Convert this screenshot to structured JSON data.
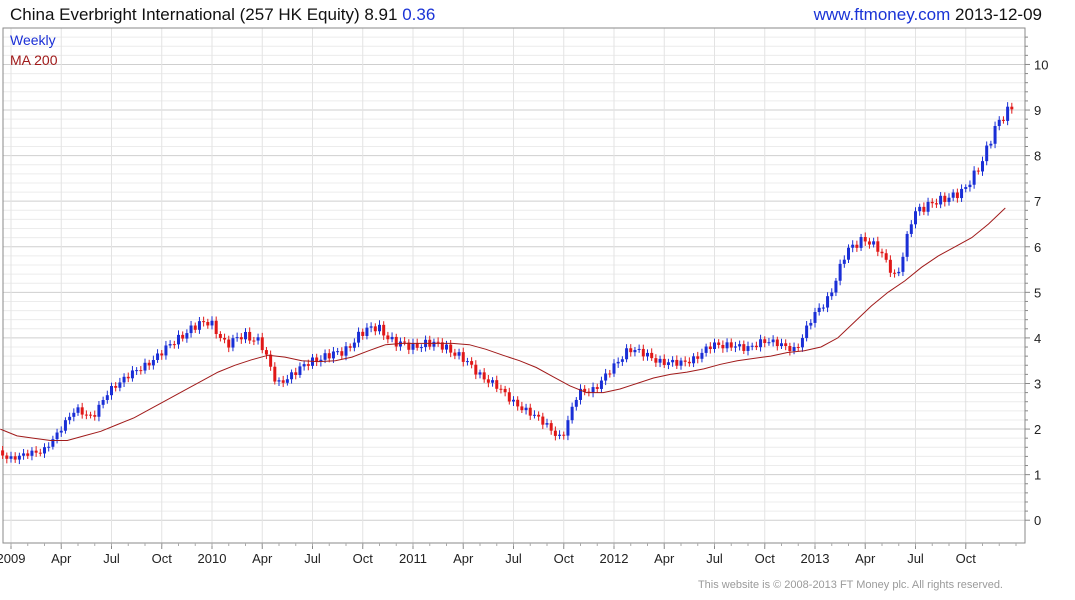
{
  "header": {
    "title": "China Everbright International (257 HK Equity) 8.91",
    "change": "0.36",
    "site": "www.ftmoney.com",
    "date": "2013-12-09"
  },
  "footer": {
    "copyright": "This website is © 2008-2013 FT Money plc. All rights reserved."
  },
  "colors": {
    "up": "#1a2fd6",
    "down": "#e01818",
    "ma": "#a01a1a",
    "legend_weekly": "#1a2fd6",
    "legend_ma": "#a01a1a",
    "grid": "#d8d8d8"
  },
  "chart_data": {
    "type": "line",
    "title": "China Everbright International (257 HK Equity) 8.91",
    "legend": [
      "Weekly",
      "MA 200"
    ],
    "legend_position": "top-left",
    "grid": true,
    "ylim": [
      -0.5,
      10.8
    ],
    "y_ticks": [
      0,
      1,
      2,
      3,
      4,
      5,
      6,
      7,
      8,
      9,
      10
    ],
    "x_tick_labels": [
      {
        "date": "2009-01",
        "label": "2009"
      },
      {
        "date": "2009-04",
        "label": "Apr"
      },
      {
        "date": "2009-07",
        "label": "Jul"
      },
      {
        "date": "2009-10",
        "label": "Oct"
      },
      {
        "date": "2010-01",
        "label": "2010"
      },
      {
        "date": "2010-04",
        "label": "Apr"
      },
      {
        "date": "2010-07",
        "label": "Jul"
      },
      {
        "date": "2010-10",
        "label": "Oct"
      },
      {
        "date": "2011-01",
        "label": "2011"
      },
      {
        "date": "2011-04",
        "label": "Apr"
      },
      {
        "date": "2011-07",
        "label": "Jul"
      },
      {
        "date": "2011-10",
        "label": "Oct"
      },
      {
        "date": "2012-01",
        "label": "2012"
      },
      {
        "date": "2012-04",
        "label": "Apr"
      },
      {
        "date": "2012-07",
        "label": "Jul"
      },
      {
        "date": "2012-10",
        "label": "Oct"
      },
      {
        "date": "2013-01",
        "label": "2013"
      },
      {
        "date": "2013-04",
        "label": "Apr"
      },
      {
        "date": "2013-07",
        "label": "Jul"
      },
      {
        "date": "2013-10",
        "label": "Oct"
      }
    ],
    "series": [
      {
        "name": "Weekly",
        "style": "candlestick",
        "x": [
          "2008-12",
          "2009-01",
          "2009-02",
          "2009-03",
          "2009-04",
          "2009-05",
          "2009-06",
          "2009-07",
          "2009-08",
          "2009-09",
          "2009-10",
          "2009-11",
          "2009-12",
          "2010-01",
          "2010-02",
          "2010-03",
          "2010-04",
          "2010-05",
          "2010-06",
          "2010-07",
          "2010-08",
          "2010-09",
          "2010-10",
          "2010-11",
          "2010-12",
          "2011-01",
          "2011-02",
          "2011-03",
          "2011-04",
          "2011-05",
          "2011-06",
          "2011-07",
          "2011-08",
          "2011-09",
          "2011-10",
          "2011-11",
          "2011-12",
          "2012-01",
          "2012-02",
          "2012-03",
          "2012-04",
          "2012-05",
          "2012-06",
          "2012-07",
          "2012-08",
          "2012-09",
          "2012-10",
          "2012-11",
          "2012-12",
          "2013-01",
          "2013-02",
          "2013-03",
          "2013-04",
          "2013-05",
          "2013-06",
          "2013-07",
          "2013-08",
          "2013-09",
          "2013-10",
          "2013-11",
          "2013-12"
        ],
        "values": [
          1.5,
          1.4,
          1.4,
          1.55,
          1.9,
          2.5,
          2.2,
          2.9,
          3.1,
          3.4,
          3.6,
          4.0,
          4.2,
          4.4,
          3.8,
          4.1,
          3.9,
          3.0,
          3.2,
          3.5,
          3.6,
          3.7,
          4.1,
          4.25,
          3.9,
          3.8,
          3.9,
          3.8,
          3.6,
          3.2,
          3.0,
          2.6,
          2.4,
          2.1,
          1.8,
          2.8,
          2.9,
          3.3,
          3.8,
          3.6,
          3.5,
          3.4,
          3.6,
          3.8,
          3.9,
          3.7,
          4.0,
          3.8,
          3.8,
          4.4,
          5.0,
          5.8,
          6.3,
          5.8,
          5.4,
          6.6,
          7.1,
          6.9,
          7.4,
          7.6,
          8.91
        ]
      },
      {
        "name": "MA 200",
        "style": "line",
        "x": [
          "2008-12",
          "2009-01",
          "2009-02",
          "2009-03",
          "2009-04",
          "2009-05",
          "2009-06",
          "2009-07",
          "2009-08",
          "2009-09",
          "2009-10",
          "2009-11",
          "2009-12",
          "2010-01",
          "2010-02",
          "2010-03",
          "2010-04",
          "2010-05",
          "2010-06",
          "2010-07",
          "2010-08",
          "2010-09",
          "2010-10",
          "2010-11",
          "2010-12",
          "2011-01",
          "2011-02",
          "2011-03",
          "2011-04",
          "2011-05",
          "2011-06",
          "2011-07",
          "2011-08",
          "2011-09",
          "2011-10",
          "2011-11",
          "2011-12",
          "2012-01",
          "2012-02",
          "2012-03",
          "2012-04",
          "2012-05",
          "2012-06",
          "2012-07",
          "2012-08",
          "2012-09",
          "2012-10",
          "2012-11",
          "2012-12",
          "2013-01",
          "2013-02",
          "2013-03",
          "2013-04",
          "2013-05",
          "2013-06",
          "2013-07",
          "2013-08",
          "2013-09",
          "2013-10",
          "2013-11",
          "2013-12"
        ],
        "values": [
          2.0,
          1.85,
          1.8,
          1.75,
          1.75,
          1.85,
          1.95,
          2.1,
          2.25,
          2.45,
          2.65,
          2.85,
          3.05,
          3.25,
          3.4,
          3.52,
          3.62,
          3.58,
          3.5,
          3.48,
          3.5,
          3.58,
          3.72,
          3.85,
          3.88,
          3.88,
          3.88,
          3.88,
          3.85,
          3.75,
          3.62,
          3.5,
          3.35,
          3.15,
          2.95,
          2.8,
          2.8,
          2.88,
          3.0,
          3.12,
          3.2,
          3.25,
          3.32,
          3.42,
          3.5,
          3.55,
          3.6,
          3.68,
          3.72,
          3.8,
          4.0,
          4.35,
          4.7,
          5.0,
          5.25,
          5.55,
          5.8,
          6.0,
          6.2,
          6.5,
          6.85
        ]
      }
    ]
  }
}
